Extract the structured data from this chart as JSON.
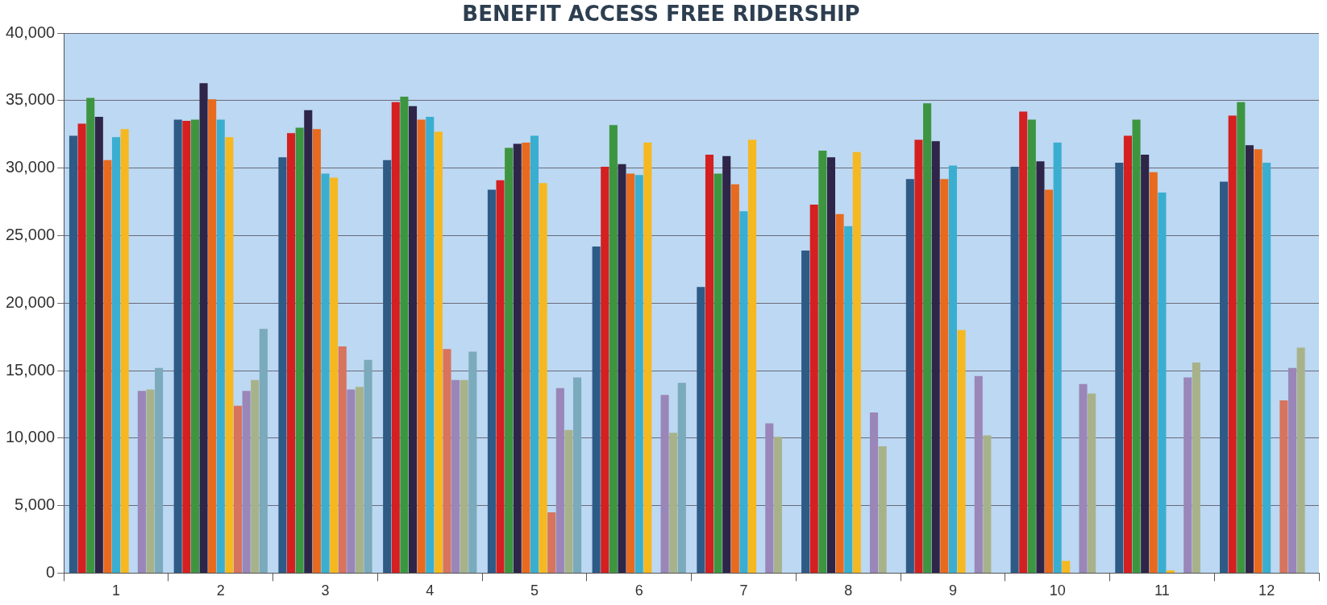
{
  "chart_data": {
    "type": "bar",
    "title": "BENEFIT ACCESS FREE RIDERSHIP",
    "categories": [
      "1",
      "2",
      "3",
      "4",
      "5",
      "6",
      "7",
      "8",
      "9",
      "10",
      "11",
      "12"
    ],
    "series": [
      {
        "color": "#2e5a86",
        "values": [
          32400,
          33600,
          30800,
          30600,
          28400,
          24200,
          21200,
          23900,
          29200,
          30100,
          30400,
          29000
        ]
      },
      {
        "color": "#d42020",
        "values": [
          33300,
          33500,
          32600,
          34900,
          29100,
          30100,
          31000,
          27300,
          32100,
          34200,
          32400,
          33900
        ]
      },
      {
        "color": "#3e9540",
        "values": [
          35200,
          33600,
          33000,
          35300,
          31500,
          33200,
          29600,
          31300,
          34800,
          33600,
          33600,
          34900
        ]
      },
      {
        "color": "#2e2548",
        "values": [
          33800,
          36300,
          34300,
          34600,
          31800,
          30300,
          30900,
          30800,
          32000,
          30500,
          31000,
          31700
        ]
      },
      {
        "color": "#e86a1e",
        "values": [
          30600,
          35100,
          32900,
          33600,
          31900,
          29600,
          28800,
          26600,
          29200,
          28400,
          29700,
          31400
        ]
      },
      {
        "color": "#3aaed0",
        "values": [
          32300,
          33600,
          29600,
          33800,
          32400,
          29500,
          26800,
          25700,
          30200,
          31900,
          28200,
          30400
        ]
      },
      {
        "color": "#f5b820",
        "values": [
          32900,
          32300,
          29300,
          32700,
          28900,
          31900,
          32100,
          31200,
          18000,
          900,
          200,
          null
        ]
      },
      {
        "color": "#d8735e",
        "values": [
          null,
          12400,
          16800,
          16600,
          4500,
          null,
          null,
          null,
          null,
          null,
          null,
          12800
        ]
      },
      {
        "color": "#9a86b8",
        "values": [
          13500,
          13500,
          13600,
          14300,
          13700,
          13200,
          11100,
          11900,
          14600,
          14000,
          14500,
          15200
        ]
      },
      {
        "color": "#a8b28a",
        "values": [
          13600,
          14300,
          13800,
          14300,
          10600,
          10400,
          10100,
          9400,
          10200,
          13300,
          15600,
          16700
        ]
      },
      {
        "color": "#7aaabb",
        "values": [
          15200,
          18100,
          15800,
          16400,
          14500,
          14100,
          null,
          null,
          null,
          null,
          null,
          null
        ]
      }
    ],
    "ylim": [
      0,
      40000
    ],
    "yticks": [
      0,
      {
        "value": 5000,
        "label": "5,000"
      },
      {
        "value": 10000,
        "label": "10,000"
      },
      {
        "value": 15000,
        "label": "15,000"
      },
      {
        "value": 20000,
        "label": "20,000"
      },
      {
        "value": 25000,
        "label": "25,000"
      },
      {
        "value": 30000,
        "label": "30,000"
      },
      {
        "value": 35000,
        "label": "35,000"
      },
      {
        "value": 40000,
        "label": "40,000"
      }
    ],
    "grid": "y",
    "legend": false
  }
}
